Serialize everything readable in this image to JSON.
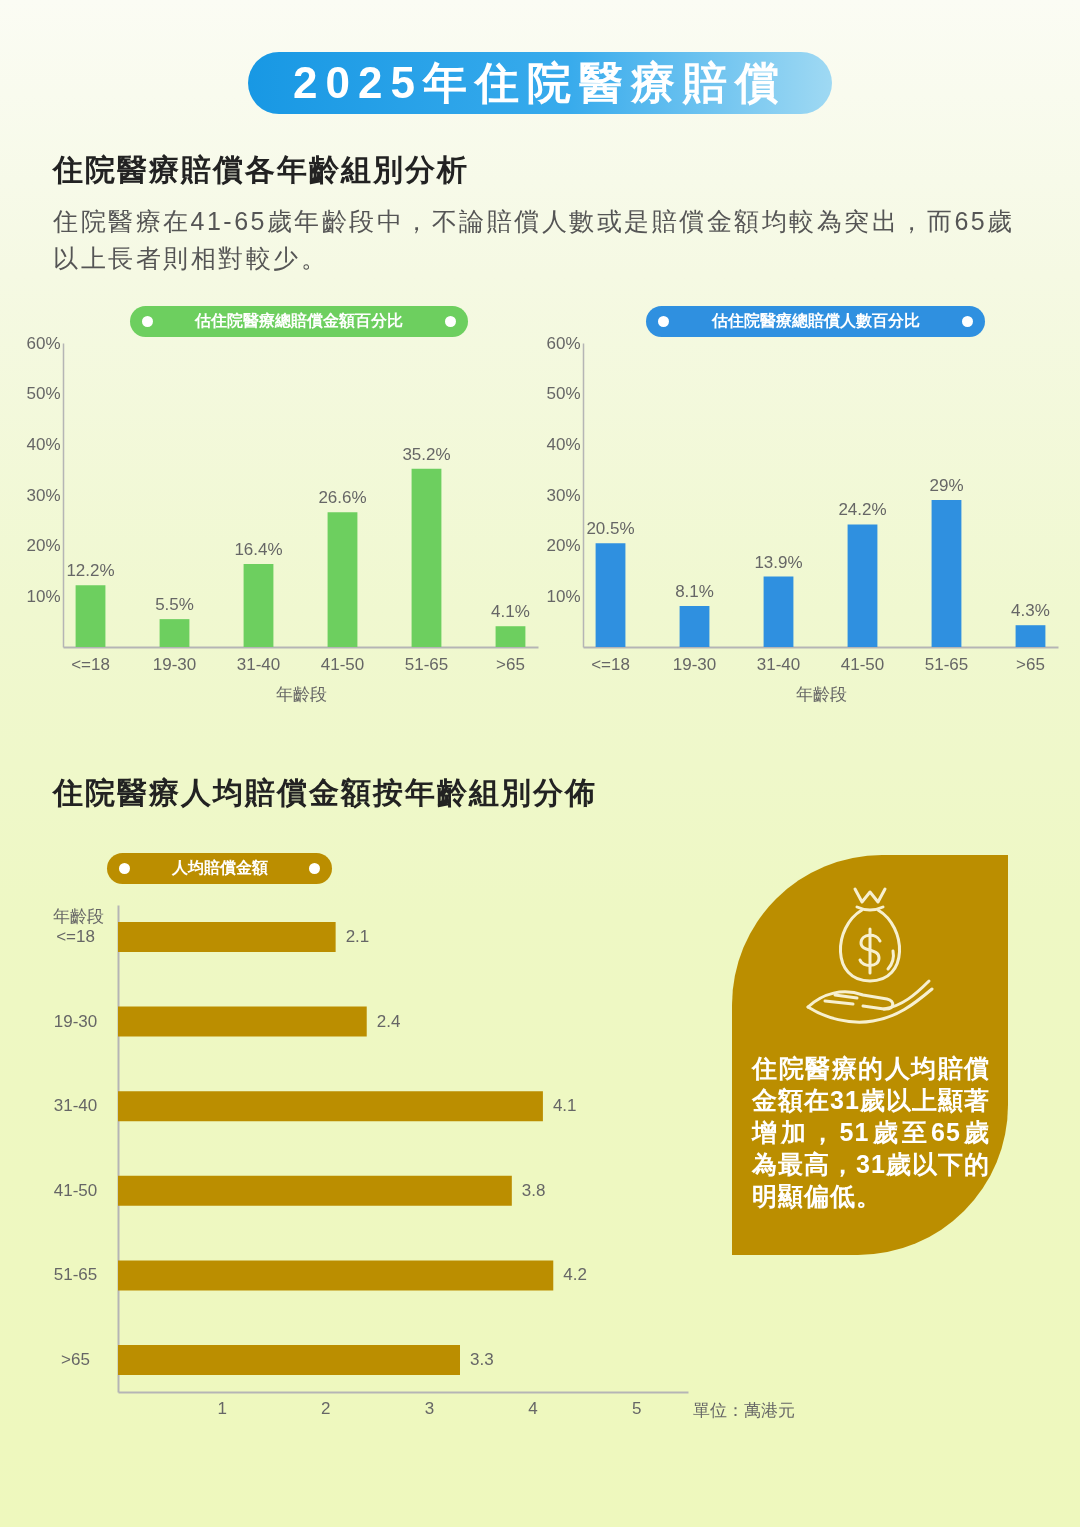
{
  "chart_data": [
    {
      "type": "other",
      "title": "2025年住院醫療賠償",
      "subtitle": "住院醫療賠償各年齡組別分析",
      "annotations": [
        "住院醫療在41-65歲年齡段中，不論賠償人數或是賠償金額均較為突出，而65歲以上長者則相對較少。"
      ]
    },
    {
      "type": "bar",
      "title": "估住院醫療總賠償金額百分比",
      "xlabel": "年齡段",
      "categories": [
        "<=18",
        "19-30",
        "31-40",
        "41-50",
        "51-65",
        ">65"
      ],
      "values": [
        12.2,
        5.5,
        16.4,
        26.6,
        35.2,
        4.1
      ],
      "color": "#6dcf5f",
      "value_labels": [
        "12.2%",
        "5.5%",
        "16.4%",
        "26.6%",
        "35.2%",
        "4.1%"
      ],
      "ylim": [
        0,
        60
      ],
      "yticks": [
        {
          "value": 10,
          "label": "10%"
        },
        {
          "value": 20,
          "label": "20%"
        },
        {
          "value": 30,
          "label": "30%"
        },
        {
          "value": 40,
          "label": "40%"
        },
        {
          "value": 50,
          "label": "50%"
        },
        {
          "value": 60,
          "label": "60%"
        }
      ]
    },
    {
      "type": "bar",
      "title": "估住院醫療總賠償人數百分比",
      "xlabel": "年齡段",
      "categories": [
        "<=18",
        "19-30",
        "31-40",
        "41-50",
        "51-65",
        ">65"
      ],
      "values": [
        20.5,
        8.1,
        13.9,
        24.2,
        29,
        4.3
      ],
      "color": "#2f90e0",
      "value_labels": [
        "20.5%",
        "8.1%",
        "13.9%",
        "24.2%",
        "29%",
        "4.3%"
      ],
      "ylim": [
        0,
        60
      ],
      "yticks": [
        {
          "value": 10,
          "label": "10%"
        },
        {
          "value": 20,
          "label": "20%"
        },
        {
          "value": 30,
          "label": "30%"
        },
        {
          "value": 40,
          "label": "40%"
        },
        {
          "value": 50,
          "label": "50%"
        },
        {
          "value": 60,
          "label": "60%"
        }
      ]
    },
    {
      "type": "bar",
      "orientation": "horizontal",
      "title": "住院醫療人均賠償金額按年齡組別分佈",
      "subtitle": "人均賠償金額",
      "xlabel": "單位：萬港元",
      "ylabel": "年齡段",
      "categories": [
        "<=18",
        "19-30",
        "31-40",
        "41-50",
        "51-65",
        ">65"
      ],
      "values": [
        2.1,
        2.4,
        4.1,
        3.8,
        4.2,
        3.3
      ],
      "color": "#bb8e00",
      "data_labels": true,
      "xlim": [
        0,
        5.5
      ],
      "xticks": [
        1,
        2,
        3,
        4,
        5
      ],
      "annotations": [
        "住院醫療的人均賠償金額在31歲以上顯著增加，51歲至65歲為最高，31歲以下的明顯偏低。"
      ]
    }
  ]
}
